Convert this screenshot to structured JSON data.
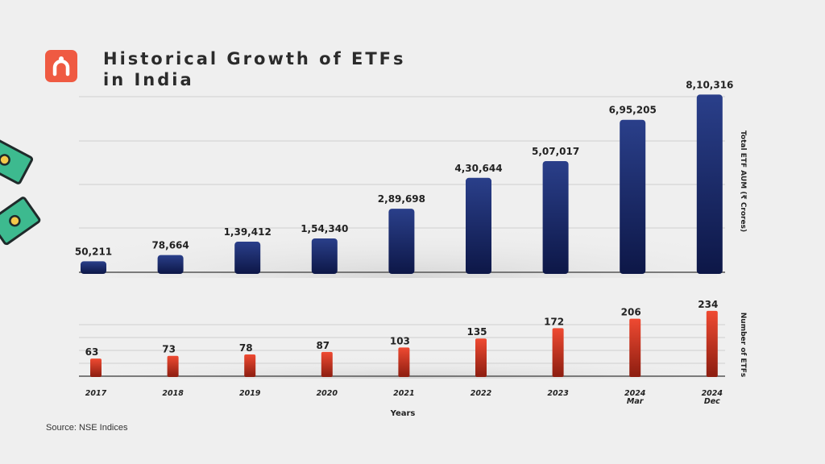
{
  "header": {
    "title_line1": "Historical Growth of ETFs",
    "title_line2": "in India",
    "logo_icon": "brand-logo-icon"
  },
  "source": "Source: NSE Indices",
  "decoration": {
    "icons": [
      "banknote-icon",
      "banknote-icon"
    ],
    "color": "#3dba8f"
  },
  "colors": {
    "aum_bar_top": "#2a3f8a",
    "aum_bar_bottom": "#0d1747",
    "count_bar_top": "#ef4a32",
    "count_bar_bottom": "#8c1d10",
    "logo": "#ef5a42"
  },
  "chart_data": [
    {
      "type": "bar",
      "title": "Historical Growth of ETFs in India",
      "ylabel": "Total ETF AUM (₹ Crores)",
      "xlabel": "Years",
      "ylim": [
        0,
        900000
      ],
      "grid": true,
      "categories": [
        {
          "year": "2017",
          "sub": ""
        },
        {
          "year": "2018",
          "sub": ""
        },
        {
          "year": "2019",
          "sub": ""
        },
        {
          "year": "2020",
          "sub": ""
        },
        {
          "year": "2021",
          "sub": ""
        },
        {
          "year": "2022",
          "sub": ""
        },
        {
          "year": "2023",
          "sub": ""
        },
        {
          "year": "2024",
          "sub": "Mar"
        },
        {
          "year": "2024",
          "sub": "Dec"
        }
      ],
      "values": [
        50211,
        78664,
        139412,
        154340,
        289698,
        430644,
        507017,
        695205,
        810316
      ],
      "value_labels": [
        "50,211",
        "78,664",
        "1,39,412",
        "1,54,340",
        "2,89,698",
        "4,30,644",
        "5,07,017",
        "6,95,205",
        "8,10,316"
      ]
    },
    {
      "type": "bar",
      "ylabel": "Number of ETFs",
      "xlabel": "Years",
      "ylim": [
        0,
        280
      ],
      "grid": true,
      "values": [
        63,
        73,
        78,
        87,
        103,
        135,
        172,
        206,
        234
      ],
      "value_labels": [
        "63",
        "73",
        "78",
        "87",
        "103",
        "135",
        "172",
        "206",
        "234"
      ]
    }
  ]
}
